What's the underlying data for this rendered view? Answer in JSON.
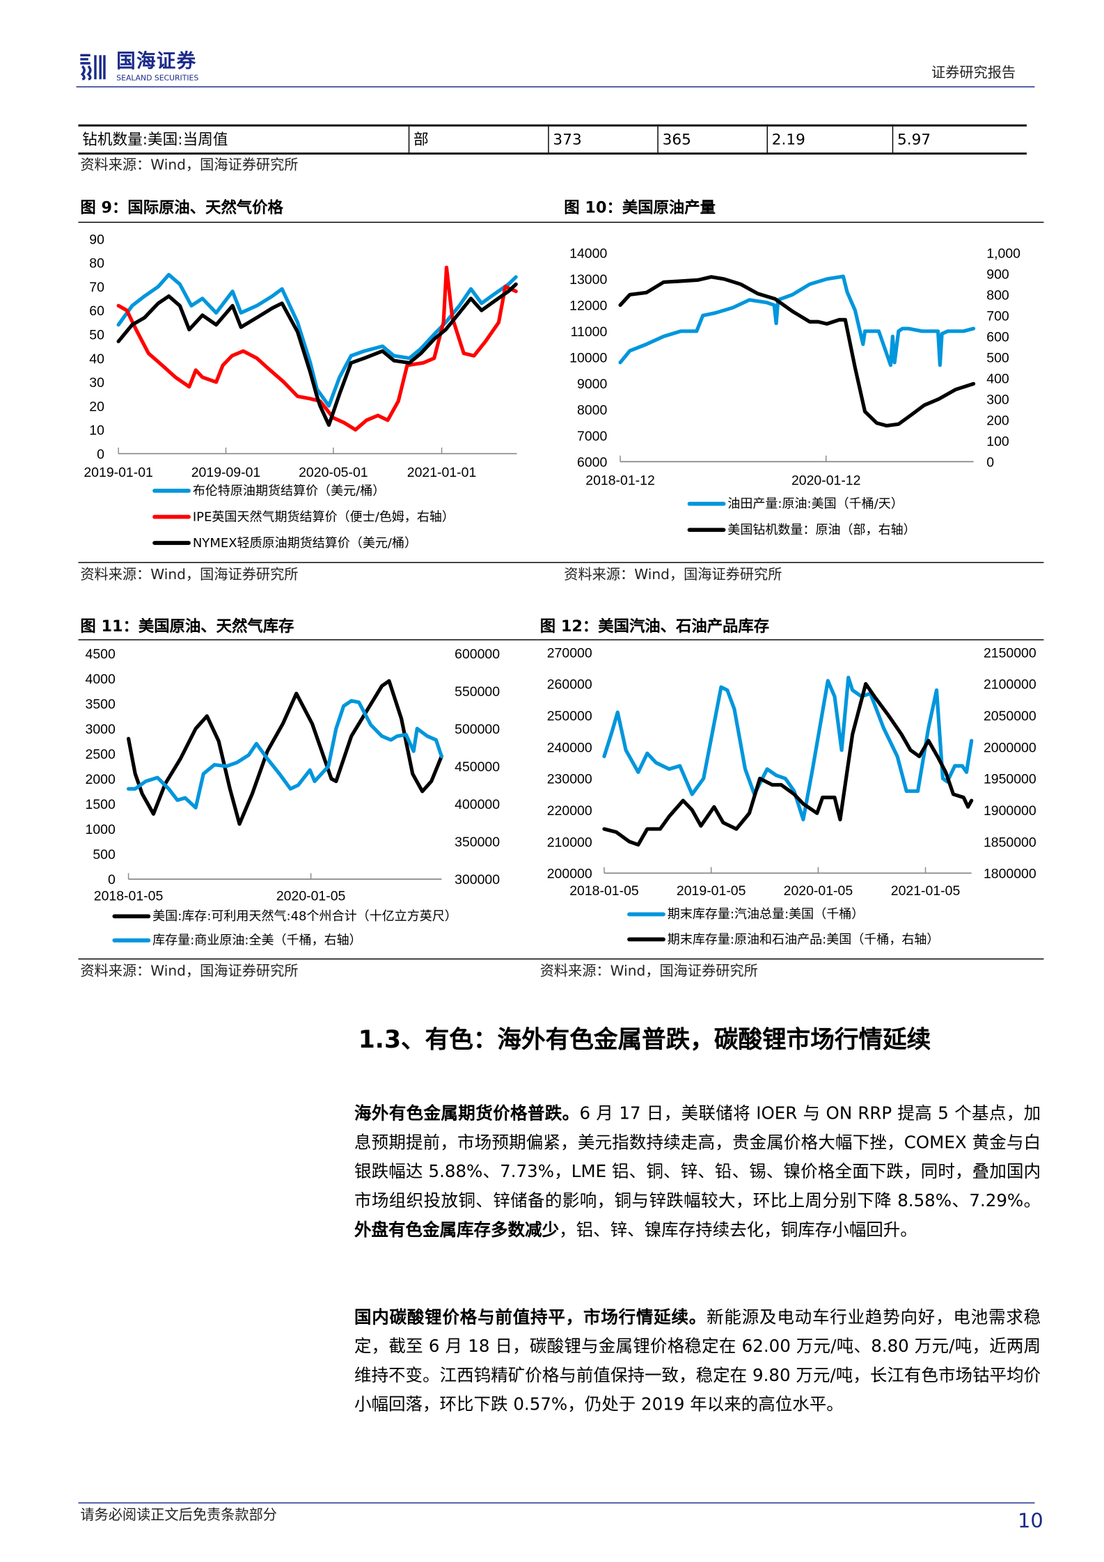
{
  "header": {
    "logo_cn": "国海证券",
    "logo_en": "SEALAND SECURITIES",
    "report_type": "证券研究报告",
    "brand_color": "#1b2a8a"
  },
  "top_table": {
    "row": [
      "钻机数量:美国:当周值",
      "部",
      "373",
      "365",
      "2.19",
      "5.97"
    ],
    "source": "资料来源：Wind，国海证券研究所"
  },
  "figures": [
    {
      "title": "图 9：国际原油、天然气价格",
      "source": "资料来源：Wind，国海证券研究所"
    },
    {
      "title": "图 10：美国原油产量",
      "source": "资料来源：Wind，国海证券研究所"
    },
    {
      "title": "图 11：美国原油、天然气库存",
      "source": "资料来源：Wind，国海证券研究所"
    },
    {
      "title": "图 12：美国汽油、石油产品库存",
      "source": "资料来源：Wind，国海证券研究所"
    }
  ],
  "chart_data": [
    {
      "type": "line",
      "x_range": [
        "2019-01-01",
        "2021-06-20"
      ],
      "xticks": [
        "2019-01-01",
        "2019-09-01",
        "2020-05-01",
        "2021-01-01"
      ],
      "ylim": [
        0,
        90
      ],
      "yticks": [
        "0",
        "10",
        "20",
        "30",
        "40",
        "50",
        "60",
        "70",
        "80",
        "90"
      ],
      "legend_placement": "bottom",
      "grid": false,
      "series": [
        {
          "name": "布伦特原油期货结算价（美元/桶）",
          "color": "#0096DC",
          "axis": "left",
          "x": [
            "2019-01-01",
            "2019-02-01",
            "2019-03-01",
            "2019-04-01",
            "2019-04-25",
            "2019-05-20",
            "2019-06-15",
            "2019-07-10",
            "2019-08-10",
            "2019-09-16",
            "2019-10-05",
            "2019-11-10",
            "2019-12-15",
            "2020-01-06",
            "2020-02-10",
            "2020-03-10",
            "2020-03-25",
            "2020-04-21",
            "2020-05-15",
            "2020-06-10",
            "2020-07-10",
            "2020-08-20",
            "2020-09-15",
            "2020-10-20",
            "2020-11-15",
            "2020-12-15",
            "2021-01-10",
            "2021-02-10",
            "2021-03-08",
            "2021-04-01",
            "2021-05-01",
            "2021-06-01",
            "2021-06-18"
          ],
          "y": [
            54,
            62,
            66,
            70,
            75,
            71,
            62,
            65,
            59,
            68,
            59,
            62,
            66,
            69,
            55,
            38,
            27,
            20,
            32,
            41,
            43,
            45,
            41,
            40,
            44,
            50,
            55,
            62,
            69,
            63,
            67,
            71,
            74
          ]
        },
        {
          "name": "IPE英国天然气期货结算价（便士/色姆，右轴）",
          "color": "#FF0000",
          "axis": "left",
          "x": [
            "2019-01-01",
            "2019-01-20",
            "2019-02-10",
            "2019-03-10",
            "2019-04-10",
            "2019-05-10",
            "2019-06-10",
            "2019-06-25",
            "2019-07-10",
            "2019-08-10",
            "2019-08-25",
            "2019-09-15",
            "2019-10-10",
            "2019-11-10",
            "2019-12-10",
            "2020-01-10",
            "2020-02-10",
            "2020-03-10",
            "2020-04-01",
            "2020-05-01",
            "2020-05-25",
            "2020-06-20",
            "2020-07-15",
            "2020-08-10",
            "2020-09-01",
            "2020-09-25",
            "2020-10-15",
            "2020-11-20",
            "2020-12-15",
            "2021-01-05",
            "2021-01-12",
            "2021-01-25",
            "2021-02-20",
            "2021-03-15",
            "2021-04-10",
            "2021-05-10",
            "2021-05-25",
            "2021-06-18"
          ],
          "y": [
            62,
            60,
            52,
            42,
            37,
            32,
            28,
            35,
            32,
            30,
            37,
            41,
            43,
            40,
            35,
            30,
            24,
            23,
            22,
            15,
            13,
            10,
            14,
            16,
            14,
            22,
            37,
            38,
            40,
            55,
            78,
            57,
            42,
            41,
            47,
            55,
            70,
            68
          ]
        },
        {
          "name": "NYMEX轻质原油期货结算价（美元/桶）",
          "color": "#000000",
          "axis": "left",
          "x": [
            "2019-01-01",
            "2019-02-01",
            "2019-03-01",
            "2019-04-01",
            "2019-04-25",
            "2019-05-20",
            "2019-06-10",
            "2019-07-10",
            "2019-08-10",
            "2019-09-16",
            "2019-10-05",
            "2019-11-10",
            "2019-12-15",
            "2020-01-06",
            "2020-02-10",
            "2020-03-10",
            "2020-03-25",
            "2020-04-01",
            "2020-04-21",
            "2020-05-15",
            "2020-06-10",
            "2020-07-10",
            "2020-08-20",
            "2020-09-15",
            "2020-10-20",
            "2020-11-15",
            "2020-12-15",
            "2021-01-10",
            "2021-02-10",
            "2021-03-08",
            "2021-04-01",
            "2021-05-01",
            "2021-06-01",
            "2021-06-18"
          ],
          "y": [
            47,
            54,
            57,
            63,
            66,
            62,
            52,
            58,
            54,
            62,
            53,
            57,
            61,
            63,
            51,
            34,
            24,
            20,
            12,
            25,
            38,
            40,
            43,
            39,
            38,
            42,
            48,
            52,
            59,
            65,
            60,
            64,
            68,
            71
          ]
        }
      ]
    },
    {
      "type": "line",
      "x_range": [
        "2018-01-12",
        "2021-06-18"
      ],
      "xticks": [
        "2018-01-12",
        "2020-01-12"
      ],
      "ylim": [
        6000,
        14000
      ],
      "yticks": [
        "6000",
        "7000",
        "8000",
        "9000",
        "10000",
        "11000",
        "12000",
        "13000",
        "14000"
      ],
      "y2lim": [
        0,
        1000
      ],
      "y2ticks": [
        "0",
        "100",
        "200",
        "300",
        "400",
        "500",
        "600",
        "700",
        "800",
        "900",
        "1,000"
      ],
      "legend_placement": "bottom",
      "grid": false,
      "series": [
        {
          "name": "油田产量:原油:美国（千桶/天）",
          "color": "#0096DC",
          "axis": "left",
          "x": [
            "2018-01-12",
            "2018-02-15",
            "2018-04-15",
            "2018-06-15",
            "2018-08-15",
            "2018-10-10",
            "2018-11-01",
            "2018-12-15",
            "2019-02-15",
            "2019-04-15",
            "2019-06-15",
            "2019-07-12",
            "2019-07-19",
            "2019-07-26",
            "2019-09-15",
            "2019-11-15",
            "2020-01-15",
            "2020-03-13",
            "2020-03-27",
            "2020-04-24",
            "2020-05-22",
            "2020-05-29",
            "2020-06-19",
            "2020-07-17",
            "2020-08-28",
            "2020-09-04",
            "2020-09-11",
            "2020-09-25",
            "2020-10-09",
            "2020-10-30",
            "2020-12-18",
            "2021-02-12",
            "2021-02-19",
            "2021-02-26",
            "2021-03-19",
            "2021-05-14",
            "2021-06-18"
          ],
          "y": [
            9800,
            10250,
            10500,
            10800,
            11000,
            11000,
            11600,
            11700,
            11900,
            12200,
            12100,
            12000,
            11300,
            12200,
            12400,
            12800,
            13000,
            13100,
            12500,
            11800,
            10500,
            11000,
            11000,
            11000,
            9700,
            10800,
            9800,
            11000,
            11100,
            11100,
            11000,
            11000,
            9700,
            10900,
            11000,
            11000,
            11100
          ]
        },
        {
          "name": "美国钻机数量：原油（部，右轴）",
          "color": "#000000",
          "axis": "right",
          "x": [
            "2018-01-12",
            "2018-02-15",
            "2018-04-15",
            "2018-06-15",
            "2018-08-15",
            "2018-10-15",
            "2018-12-01",
            "2019-01-15",
            "2019-03-15",
            "2019-05-15",
            "2019-07-15",
            "2019-09-15",
            "2019-11-15",
            "2019-12-15",
            "2020-01-15",
            "2020-02-28",
            "2020-03-20",
            "2020-04-24",
            "2020-05-29",
            "2020-07-10",
            "2020-08-14",
            "2020-09-25",
            "2020-11-15",
            "2020-12-25",
            "2021-02-15",
            "2021-04-15",
            "2021-06-18"
          ],
          "y": [
            750,
            800,
            810,
            860,
            865,
            870,
            885,
            875,
            850,
            805,
            780,
            720,
            670,
            670,
            660,
            680,
            680,
            450,
            240,
            185,
            172,
            180,
            230,
            270,
            300,
            345,
            373
          ]
        }
      ]
    },
    {
      "type": "line",
      "x_range": [
        "2018-01-05",
        "2021-06-11"
      ],
      "xticks": [
        "2018-01-05",
        "2020-01-05"
      ],
      "ylim": [
        0,
        4500
      ],
      "yticks": [
        "0",
        "500",
        "1000",
        "1500",
        "2000",
        "2500",
        "3000",
        "3500",
        "4000",
        "4500"
      ],
      "y2lim": [
        300000,
        600000
      ],
      "y2ticks": [
        "300000",
        "350000",
        "400000",
        "450000",
        "500000",
        "550000",
        "600000"
      ],
      "legend_placement": "bottom",
      "grid": false,
      "series": [
        {
          "name": "美国:库存:可利用天然气:48个州合计（十亿立方英尺）",
          "color": "#000000",
          "axis": "left",
          "x": [
            "2018-01-05",
            "2018-02-01",
            "2018-03-01",
            "2018-04-15",
            "2018-06-01",
            "2018-08-01",
            "2018-10-01",
            "2018-11-15",
            "2019-01-01",
            "2019-02-15",
            "2019-03-25",
            "2019-05-15",
            "2019-07-15",
            "2019-09-15",
            "2019-11-08",
            "2020-01-10",
            "2020-03-27",
            "2020-04-15",
            "2020-06-15",
            "2020-08-15",
            "2020-10-15",
            "2020-11-13",
            "2021-01-01",
            "2021-02-15",
            "2021-03-26",
            "2021-05-01",
            "2021-06-11"
          ],
          "y": [
            2800,
            2100,
            1700,
            1300,
            1900,
            2400,
            3000,
            3250,
            2750,
            1800,
            1100,
            1700,
            2550,
            3100,
            3700,
            3100,
            2000,
            1950,
            2850,
            3350,
            3850,
            3950,
            3200,
            2100,
            1750,
            1950,
            2450
          ]
        },
        {
          "name": "库存量:商业原油:全美（千桶，右轴）",
          "color": "#0096DC",
          "axis": "right",
          "x": [
            "2018-01-05",
            "2018-02-01",
            "2018-03-15",
            "2018-05-01",
            "2018-06-15",
            "2018-07-20",
            "2018-08-20",
            "2018-10-01",
            "2018-11-01",
            "2018-12-15",
            "2019-02-01",
            "2019-03-15",
            "2019-05-01",
            "2019-06-01",
            "2019-07-15",
            "2019-09-01",
            "2019-10-15",
            "2019-11-15",
            "2020-01-01",
            "2020-01-20",
            "2020-03-15",
            "2020-04-15",
            "2020-05-15",
            "2020-06-15",
            "2020-07-15",
            "2020-09-01",
            "2020-10-15",
            "2020-11-20",
            "2020-12-15",
            "2021-01-20",
            "2021-02-19",
            "2021-03-05",
            "2021-04-15",
            "2021-05-20",
            "2021-06-11"
          ],
          "y": [
            420000,
            420000,
            430000,
            435000,
            420000,
            405000,
            408000,
            395000,
            440000,
            452000,
            450000,
            455000,
            465000,
            480000,
            460000,
            440000,
            420000,
            425000,
            445000,
            430000,
            450000,
            500000,
            530000,
            537000,
            535000,
            505000,
            490000,
            485000,
            490000,
            492000,
            470000,
            500000,
            490000,
            485000,
            463000
          ]
        }
      ]
    },
    {
      "type": "line",
      "x_range": [
        "2018-01-05",
        "2021-06-11"
      ],
      "xticks": [
        "2018-01-05",
        "2019-01-05",
        "2020-01-05",
        "2021-01-05"
      ],
      "ylim": [
        200000,
        270000
      ],
      "yticks": [
        "200000",
        "210000",
        "220000",
        "230000",
        "240000",
        "250000",
        "260000",
        "270000"
      ],
      "y2lim": [
        1800000,
        2150000
      ],
      "y2ticks": [
        "1800000",
        "1850000",
        "1900000",
        "1950000",
        "2000000",
        "2050000",
        "2100000",
        "2150000"
      ],
      "legend_placement": "bottom",
      "grid": false,
      "series": [
        {
          "name": "期末库存量:汽油总量:美国（千桶）",
          "color": "#0096DC",
          "axis": "left",
          "x": [
            "2018-01-05",
            "2018-02-01",
            "2018-02-20",
            "2018-03-20",
            "2018-05-01",
            "2018-06-01",
            "2018-07-01",
            "2018-08-15",
            "2018-09-20",
            "2018-11-01",
            "2018-12-10",
            "2019-02-08",
            "2019-03-01",
            "2019-03-25",
            "2019-05-01",
            "2019-06-01",
            "2019-07-15",
            "2019-08-15",
            "2019-09-15",
            "2019-10-15",
            "2019-11-15",
            "2019-12-15",
            "2020-02-07",
            "2020-03-01",
            "2020-03-25",
            "2020-04-17",
            "2020-05-01",
            "2020-06-01",
            "2020-07-01",
            "2020-08-15",
            "2020-10-01",
            "2020-11-01",
            "2020-12-10",
            "2021-01-15",
            "2021-02-12",
            "2021-03-05",
            "2021-03-20",
            "2021-04-15",
            "2021-05-10",
            "2021-05-25",
            "2021-06-11"
          ],
          "y": [
            237000,
            245000,
            251000,
            239000,
            232000,
            238000,
            235000,
            233000,
            234000,
            225000,
            230000,
            259000,
            258000,
            252000,
            233000,
            225000,
            233000,
            231000,
            230000,
            226000,
            217000,
            232000,
            261000,
            256000,
            239000,
            262000,
            258000,
            256000,
            257000,
            246000,
            237000,
            226000,
            226000,
            246000,
            258000,
            230000,
            229000,
            234000,
            234000,
            232000,
            242000
          ]
        },
        {
          "name": "期末库存量:原油和石油产品:美国（千桶，右轴）",
          "color": "#000000",
          "axis": "right",
          "x": [
            "2018-01-05",
            "2018-02-15",
            "2018-04-01",
            "2018-05-01",
            "2018-06-01",
            "2018-07-15",
            "2018-08-15",
            "2018-10-01",
            "2018-11-01",
            "2018-12-01",
            "2019-01-15",
            "2019-02-15",
            "2019-04-01",
            "2019-05-15",
            "2019-06-20",
            "2019-08-01",
            "2019-09-01",
            "2019-10-15",
            "2019-11-15",
            "2020-01-01",
            "2020-01-20",
            "2020-03-01",
            "2020-03-20",
            "2020-05-01",
            "2020-06-15",
            "2020-07-15",
            "2020-09-01",
            "2020-10-15",
            "2020-11-15",
            "2020-12-15",
            "2021-01-15",
            "2021-02-15",
            "2021-03-15",
            "2021-04-10",
            "2021-05-15",
            "2021-05-30",
            "2021-06-11"
          ],
          "y": [
            1870000,
            1865000,
            1850000,
            1845000,
            1870000,
            1870000,
            1890000,
            1915000,
            1900000,
            1875000,
            1905000,
            1880000,
            1870000,
            1895000,
            1950000,
            1940000,
            1940000,
            1925000,
            1910000,
            1895000,
            1920000,
            1920000,
            1885000,
            2020000,
            2100000,
            2080000,
            2050000,
            2020000,
            1995000,
            1985000,
            2010000,
            1985000,
            1960000,
            1925000,
            1920000,
            1905000,
            1915000
          ]
        }
      ]
    }
  ],
  "section": {
    "heading": "1.3、有色：海外有色金属普跌，碳酸锂市场行情延续",
    "paragraphs": [
      [
        {
          "bold": true,
          "text": "海外有色金属期货价格普跌。"
        },
        {
          "bold": false,
          "text": "6 月 17 日，美联储将 IOER 与 ON RRP 提高 5 个基点，加息预期提前，市场预期偏紧，美元指数持续走高，贵金属价格大幅下挫，COMEX 黄金与白银跌幅达 5.88%、7.73%，LME 铝、铜、锌、铅、锡、镍价格全面下跌，同时，叠加国内市场组织投放铜、锌储备的影响，铜与锌跌幅较大，环比上周分别下降 8.58%、7.29%。"
        },
        {
          "bold": true,
          "text": "外盘有色金属库存多数减少"
        },
        {
          "bold": false,
          "text": "，铝、锌、镍库存持续去化，铜库存小幅回升。"
        }
      ],
      [
        {
          "bold": true,
          "text": "国内碳酸锂价格与前值持平，市场行情延续。"
        },
        {
          "bold": false,
          "text": "新能源及电动车行业趋势向好，电池需求稳定，截至 6 月 18 日，碳酸锂与金属锂价格稳定在 62.00 万元/吨、8.80 万元/吨，近两周维持不变。江西钨精矿价格与前值保持一致，稳定在 9.80 万元/吨，长江有色市场钴平均价小幅回落，环比下跌 0.57%，仍处于 2019 年以来的高位水平。"
        }
      ]
    ]
  },
  "footer": {
    "disclaimer": "请务必阅读正文后免责条款部分",
    "page_number": "10"
  }
}
